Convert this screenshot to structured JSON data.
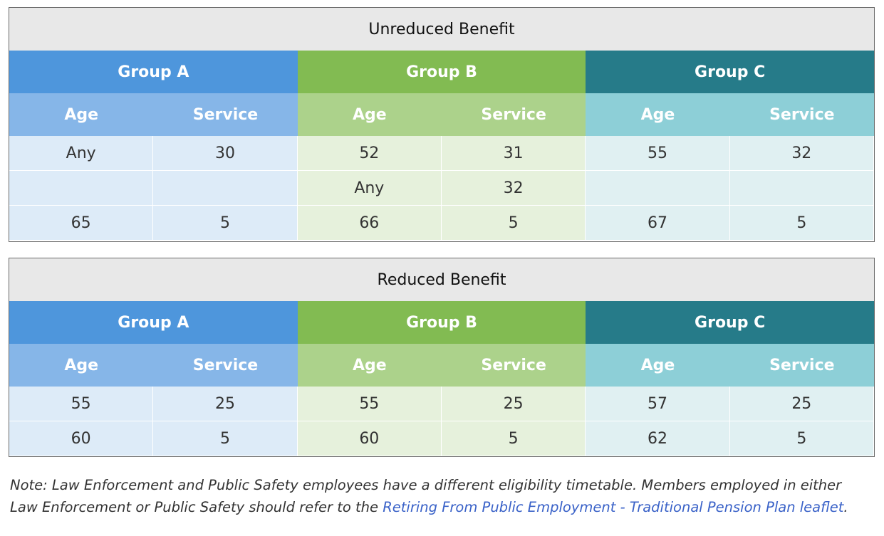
{
  "tables": [
    {
      "title": "Unreduced Benefit",
      "groups": [
        "Group A",
        "Group B",
        "Group C"
      ],
      "subheaders": [
        "Age",
        "Service"
      ],
      "rows": [
        [
          "Any",
          "30",
          "52",
          "31",
          "55",
          "32"
        ],
        [
          "",
          "",
          "Any",
          "32",
          "",
          ""
        ],
        [
          "65",
          "5",
          "66",
          "5",
          "67",
          "5"
        ]
      ]
    },
    {
      "title": "Reduced Benefit",
      "groups": [
        "Group A",
        "Group B",
        "Group C"
      ],
      "subheaders": [
        "Age",
        "Service"
      ],
      "rows": [
        [
          "55",
          "25",
          "55",
          "25",
          "57",
          "25"
        ],
        [
          "60",
          "5",
          "60",
          "5",
          "62",
          "5"
        ]
      ]
    }
  ],
  "note": {
    "line1": "Note: Law Enforcement and Public Safety employees have a different eligibility timetable. Members employed in either",
    "line2_prefix": "Law Enforcement or Public Safety should refer to the ",
    "link_text": "Retiring From Public Employment - Traditional Pension Plan leaflet",
    "line2_suffix": "."
  },
  "colors": {
    "group_a": "#4e96dc",
    "group_b": "#82bb52",
    "group_c": "#267b89",
    "link": "#3a62c8"
  }
}
